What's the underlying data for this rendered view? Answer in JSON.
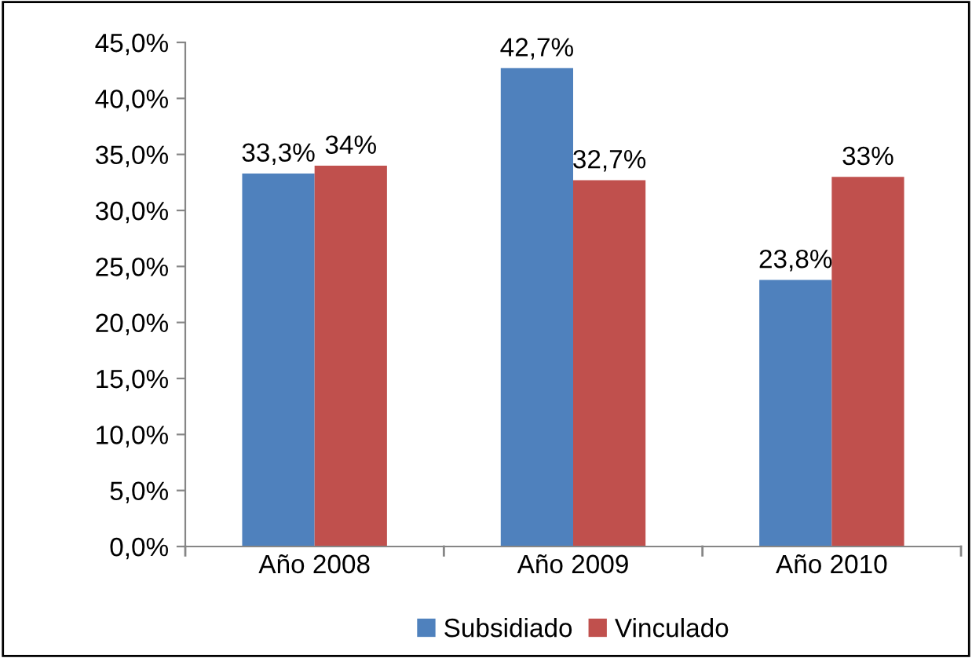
{
  "chart_data": {
    "type": "bar",
    "categories": [
      "Año 2008",
      "Año 2009",
      "Año 2010"
    ],
    "series": [
      {
        "name": "Subsidiado",
        "color": "#4f81bd",
        "values": [
          33.3,
          42.7,
          23.8
        ],
        "value_labels": [
          "33,3%",
          "42,7%",
          "23,8%"
        ]
      },
      {
        "name": "Vinculado",
        "color": "#c0504d",
        "values": [
          34,
          32.7,
          33
        ],
        "value_labels": [
          "34%",
          "32,7%",
          "33%"
        ]
      }
    ],
    "ylim": [
      0,
      45
    ],
    "yticks": [
      {
        "value": 0,
        "label": "0,0%"
      },
      {
        "value": 5,
        "label": "5,0%"
      },
      {
        "value": 10,
        "label": "10,0%"
      },
      {
        "value": 15,
        "label": "15,0%"
      },
      {
        "value": 20,
        "label": "20,0%"
      },
      {
        "value": 25,
        "label": "25,0%"
      },
      {
        "value": 30,
        "label": "30,0%"
      },
      {
        "value": 35,
        "label": "35,0%"
      },
      {
        "value": 40,
        "label": "40,0%"
      },
      {
        "value": 45,
        "label": "45,0%"
      }
    ],
    "grid": false,
    "legend": "bottom"
  }
}
